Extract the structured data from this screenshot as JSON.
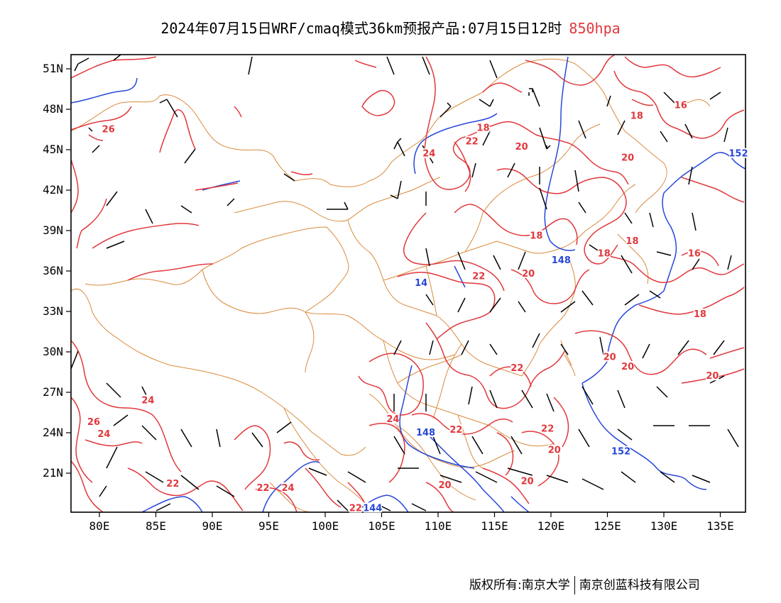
{
  "title": {
    "main": "2024年07月15日WRF/cmaq模式36km预报产品:07月15日12时",
    "level": "850hpa"
  },
  "axes": {
    "lat_labels": [
      "51N",
      "48N",
      "45N",
      "42N",
      "39N",
      "36N",
      "33N",
      "30N",
      "27N",
      "24N",
      "21N"
    ],
    "lat_values": [
      51,
      48,
      45,
      42,
      39,
      36,
      33,
      30,
      27,
      24,
      21
    ],
    "lon_labels": [
      "80E",
      "85E",
      "90E",
      "95E",
      "100E",
      "105E",
      "110E",
      "115E",
      "120E",
      "125E",
      "130E",
      "135E"
    ],
    "lon_values": [
      80,
      85,
      90,
      95,
      100,
      105,
      110,
      115,
      120,
      125,
      130,
      135
    ],
    "lon_range": [
      78,
      138
    ],
    "lat_range": [
      18,
      52
    ]
  },
  "colors": {
    "temperature": "#e0383c",
    "height": "#2747d8",
    "boundary": "#d98a3d",
    "wind": "#000000"
  },
  "temperature_labels": [
    {
      "text": "26",
      "lon": 80.8,
      "lat": 46.5
    },
    {
      "text": "24",
      "lon": 109.2,
      "lat": 44.7
    },
    {
      "text": "22",
      "lon": 113.0,
      "lat": 45.6
    },
    {
      "text": "18",
      "lon": 114.0,
      "lat": 46.6
    },
    {
      "text": "20",
      "lon": 117.4,
      "lat": 45.2
    },
    {
      "text": "20",
      "lon": 126.8,
      "lat": 44.4
    },
    {
      "text": "18",
      "lon": 127.6,
      "lat": 47.5
    },
    {
      "text": "16",
      "lon": 131.5,
      "lat": 48.3
    },
    {
      "text": "18",
      "lon": 118.7,
      "lat": 38.6
    },
    {
      "text": "18",
      "lon": 127.2,
      "lat": 38.2
    },
    {
      "text": "18",
      "lon": 124.7,
      "lat": 37.3
    },
    {
      "text": "16",
      "lon": 132.7,
      "lat": 37.3
    },
    {
      "text": "22",
      "lon": 113.6,
      "lat": 35.6
    },
    {
      "text": "20",
      "lon": 118.0,
      "lat": 35.8
    },
    {
      "text": "18",
      "lon": 133.2,
      "lat": 32.8
    },
    {
      "text": "22",
      "lon": 117.0,
      "lat": 28.8
    },
    {
      "text": "20",
      "lon": 125.2,
      "lat": 29.6
    },
    {
      "text": "20",
      "lon": 126.8,
      "lat": 28.9
    },
    {
      "text": "20",
      "lon": 134.3,
      "lat": 28.2
    },
    {
      "text": "24",
      "lon": 84.3,
      "lat": 26.4
    },
    {
      "text": "26",
      "lon": 79.5,
      "lat": 24.8
    },
    {
      "text": "24",
      "lon": 80.4,
      "lat": 23.9
    },
    {
      "text": "24",
      "lon": 106.0,
      "lat": 25.0
    },
    {
      "text": "22",
      "lon": 111.6,
      "lat": 24.2
    },
    {
      "text": "22",
      "lon": 119.7,
      "lat": 24.3
    },
    {
      "text": "20",
      "lon": 120.3,
      "lat": 22.7
    },
    {
      "text": "22",
      "lon": 86.5,
      "lat": 20.2
    },
    {
      "text": "22",
      "lon": 94.5,
      "lat": 19.9
    },
    {
      "text": "24",
      "lon": 96.7,
      "lat": 19.9
    },
    {
      "text": "20",
      "lon": 110.6,
      "lat": 20.1
    },
    {
      "text": "20",
      "lon": 117.9,
      "lat": 20.4
    },
    {
      "text": "22",
      "lon": 102.7,
      "lat": 18.4
    }
  ],
  "height_labels": [
    {
      "text": "152",
      "lon": 136.6,
      "lat": 44.7
    },
    {
      "text": "148",
      "lon": 120.9,
      "lat": 36.8
    },
    {
      "text": "14",
      "lon": 108.5,
      "lat": 35.1
    },
    {
      "text": "148",
      "lon": 108.9,
      "lat": 24.0
    },
    {
      "text": "152",
      "lon": 126.2,
      "lat": 22.6
    },
    {
      "text": "144",
      "lon": 104.2,
      "lat": 18.4
    }
  ]
}
